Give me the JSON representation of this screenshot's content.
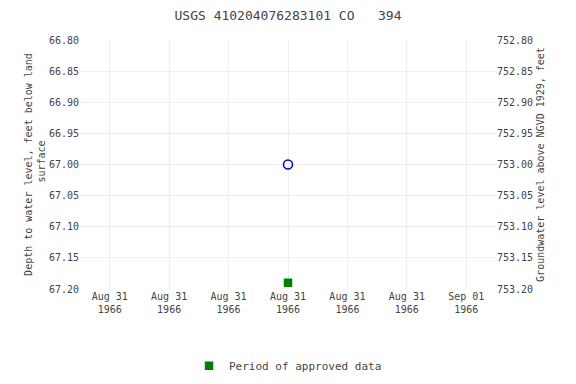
{
  "chart_data": {
    "type": "scatter",
    "title": "USGS 410204076283101 CO   394",
    "ylabel": "Depth to water level, feet below land\n surface",
    "y2label": "Groundwater level above NGVD 1929, feet",
    "categories": [
      "Aug 31\n1966",
      "Aug 31\n1966",
      "Aug 31\n1966",
      "Aug 31\n1966",
      "Aug 31\n1966",
      "Aug 31\n1966",
      "Sep 01\n1966"
    ],
    "series": [
      {
        "color": "#0000cc",
        "marker": "circle-open",
        "values": [
          null,
          null,
          null,
          67.0,
          null,
          null,
          null
        ]
      },
      {
        "name": "Period of approved data",
        "color": "#008000",
        "marker": "square",
        "values": [
          null,
          null,
          null,
          67.19,
          null,
          null,
          null
        ]
      }
    ],
    "ylim": [
      67.2,
      66.8
    ],
    "yticks": [
      {
        "value": 66.8,
        "label": "66.80"
      },
      66.85,
      {
        "value": 66.9,
        "label": "66.90"
      },
      66.95,
      {
        "value": 67.0,
        "label": "67.00"
      },
      67.05,
      {
        "value": 67.1,
        "label": "67.10"
      },
      67.15,
      {
        "value": 67.2,
        "label": "67.20"
      }
    ],
    "y2lim": [
      753.2,
      752.8
    ],
    "y2ticks": [
      {
        "value": 753.2,
        "label": "753.20"
      },
      753.15,
      {
        "value": 753.1,
        "label": "753.10"
      },
      753.05,
      {
        "value": 753.0,
        "label": "753.00"
      },
      752.95,
      {
        "value": 752.9,
        "label": "752.90"
      },
      752.85,
      {
        "value": 752.8,
        "label": "752.80"
      }
    ],
    "grid": true,
    "legend": "bottom"
  }
}
